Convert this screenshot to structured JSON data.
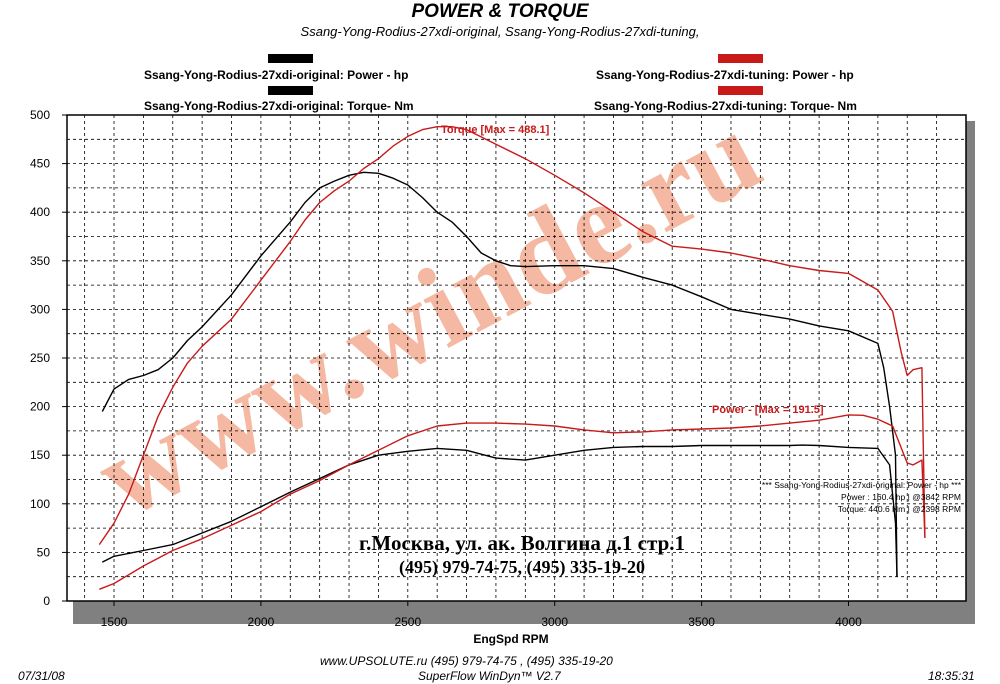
{
  "header": {
    "title": "POWER & TORQUE",
    "subtitle": "Ssang-Yong-Rodius-27xdi-original, Ssang-Yong-Rodius-27xdi-tuning,"
  },
  "legend": {
    "original_power": "Ssang-Yong-Rodius-27xdi-original: Power -  hp",
    "original_torque": "Ssang-Yong-Rodius-27xdi-original: Torque-  Nm",
    "tuning_power": "Ssang-Yong-Rodius-27xdi-tuning: Power -  hp",
    "tuning_torque": "Ssang-Yong-Rodius-27xdi-tuning: Torque-  Nm"
  },
  "colors": {
    "original": "#000000",
    "tuning": "#c81a1a",
    "watermark": "#f2a184",
    "grid": "#000000"
  },
  "annotations": {
    "torque_max": "Torque [Max = 488.1]",
    "power_max": "Power - [Max = 191.5]",
    "info_line1": "*** Ssang-Yong-Rodius-27xdi-original: Power -  hp    ***",
    "info_power": "Power  :  160.4 hp  |  @3842 RPM",
    "info_torque": "Torque:  440.6 Nm  |  @2398 RPM",
    "address": "г.Москва, ул. ак. Волгина д.1 стр.1",
    "phones": "(495) 979-74-75, (495) 335-19-20",
    "watermark": "www.winde.ru"
  },
  "footer": {
    "date": "07/31/08",
    "website": "www.UPSOLUTE.ru  (495) 979-74-75 , (495) 335-19-20",
    "software": "SuperFlow WinDyn™ V2.7",
    "time": "18:35:31"
  },
  "chart_data": {
    "type": "line",
    "title": "POWER & TORQUE",
    "xlabel": "EngSpd  RPM",
    "ylabel": "",
    "xlim": [
      1340,
      4400
    ],
    "ylim": [
      0,
      500
    ],
    "x_ticks": [
      1500,
      2000,
      2500,
      3000,
      3500,
      4000
    ],
    "y_ticks": [
      0,
      50,
      100,
      150,
      200,
      250,
      300,
      350,
      400,
      450,
      500
    ],
    "x_tick_labels": [
      "1500",
      "2000",
      "2500",
      "3000",
      "3500",
      "4000"
    ],
    "y_tick_labels": [
      "0",
      "50",
      "100",
      "150",
      "200",
      "250",
      "300",
      "350",
      "400",
      "450",
      "500"
    ],
    "grid": true,
    "legend_position": "top",
    "series": [
      {
        "name": "Ssang-Yong-Rodius-27xdi-original: Torque-  Nm",
        "color": "#000000",
        "x": [
          1460,
          1500,
          1550,
          1600,
          1650,
          1700,
          1750,
          1800,
          1900,
          2000,
          2100,
          2150,
          2200,
          2250,
          2300,
          2350,
          2400,
          2450,
          2500,
          2550,
          2600,
          2650,
          2700,
          2750,
          2800,
          2850,
          2900,
          3000,
          3100,
          3200,
          3300,
          3400,
          3500,
          3600,
          3700,
          3800,
          3900,
          4000,
          4100,
          4120,
          4140,
          4160,
          4165
        ],
        "y": [
          195,
          218,
          228,
          232,
          238,
          250,
          268,
          282,
          315,
          355,
          390,
          410,
          425,
          432,
          438,
          441,
          440,
          435,
          428,
          415,
          400,
          390,
          375,
          358,
          350,
          345,
          344,
          345,
          345,
          342,
          333,
          325,
          313,
          300,
          295,
          290,
          283,
          278,
          265,
          240,
          200,
          150,
          25
        ]
      },
      {
        "name": "Ssang-Yong-Rodius-27xdi-tuning: Torque-  Nm",
        "color": "#c81a1a",
        "x": [
          1450,
          1500,
          1550,
          1600,
          1650,
          1700,
          1750,
          1800,
          1900,
          2000,
          2100,
          2150,
          2200,
          2250,
          2300,
          2350,
          2400,
          2450,
          2500,
          2550,
          2600,
          2650,
          2700,
          2800,
          2900,
          3000,
          3100,
          3200,
          3300,
          3400,
          3500,
          3600,
          3700,
          3800,
          3900,
          4000,
          4100,
          4150,
          4180,
          4200,
          4220,
          4250,
          4260
        ],
        "y": [
          58,
          80,
          110,
          150,
          190,
          220,
          245,
          262,
          290,
          330,
          370,
          392,
          410,
          422,
          432,
          445,
          455,
          468,
          478,
          485,
          488,
          488,
          485,
          470,
          455,
          438,
          420,
          400,
          380,
          365,
          362,
          358,
          352,
          345,
          340,
          337,
          320,
          298,
          255,
          232,
          238,
          240,
          65
        ]
      },
      {
        "name": "Ssang-Yong-Rodius-27xdi-original: Power -  hp",
        "color": "#000000",
        "x": [
          1460,
          1500,
          1600,
          1700,
          1800,
          1900,
          2000,
          2100,
          2200,
          2300,
          2400,
          2500,
          2600,
          2700,
          2800,
          2900,
          3000,
          3100,
          3200,
          3300,
          3400,
          3500,
          3600,
          3700,
          3800,
          3842,
          3900,
          4000,
          4100,
          4140,
          4160,
          4165
        ],
        "y": [
          40,
          46,
          52,
          58,
          70,
          82,
          97,
          112,
          126,
          140,
          150,
          154,
          157,
          155,
          147,
          145,
          150,
          155,
          158,
          159,
          159,
          160,
          160,
          160,
          160,
          160.4,
          160,
          158,
          157,
          140,
          80,
          25
        ]
      },
      {
        "name": "Ssang-Yong-Rodius-27xdi-tuning: Power -  hp",
        "color": "#c81a1a",
        "x": [
          1450,
          1500,
          1600,
          1700,
          1800,
          1900,
          2000,
          2100,
          2200,
          2300,
          2400,
          2500,
          2600,
          2700,
          2800,
          2900,
          3000,
          3100,
          3200,
          3300,
          3400,
          3500,
          3600,
          3700,
          3800,
          3900,
          4000,
          4050,
          4100,
          4150,
          4200,
          4220,
          4250,
          4260
        ],
        "y": [
          12,
          18,
          36,
          52,
          64,
          78,
          92,
          110,
          124,
          140,
          155,
          170,
          180,
          183,
          183,
          182,
          180,
          176,
          173,
          174,
          176,
          177,
          178,
          180,
          183,
          186,
          191.5,
          191,
          187,
          180,
          142,
          140,
          145,
          65
        ]
      }
    ]
  }
}
